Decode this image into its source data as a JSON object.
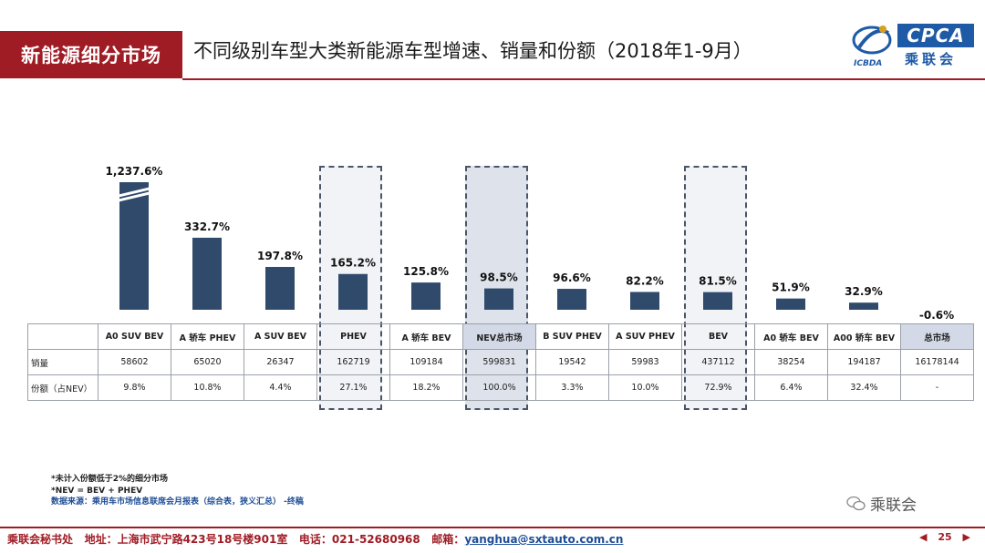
{
  "header": {
    "tag": "新能源细分市场",
    "title": "不同级别车型大类新能源车型增速、销量和份额（2018年1-9月）",
    "logo_text": "CPCA",
    "logo_cn": "乘联会",
    "logo_sub": "ICBDA"
  },
  "chart_data": {
    "type": "bar",
    "categories": [
      "A0 SUV BEV",
      "A 轿车 PHEV",
      "A SUV BEV",
      "PHEV",
      "A 轿车 BEV",
      "NEV总市场",
      "B SUV PHEV",
      "A SUV PHEV",
      "BEV",
      "A0 轿车 BEV",
      "A00 轿车 BEV",
      "总市场"
    ],
    "values": [
      1237.6,
      332.7,
      197.8,
      165.2,
      125.8,
      98.5,
      96.6,
      82.2,
      81.5,
      51.9,
      32.9,
      -0.6
    ],
    "value_labels": [
      "1,237.6%",
      "332.7%",
      "197.8%",
      "165.2%",
      "125.8%",
      "98.5%",
      "96.6%",
      "82.2%",
      "81.5%",
      "51.9%",
      "32.9%",
      "-0.6%"
    ],
    "axis_break_on": "A0 SUV BEV",
    "highlighted": [
      "PHEV",
      "NEV总市场",
      "BEV"
    ],
    "bar_color": "#2f4a6b"
  },
  "table": {
    "rows": [
      {
        "label": "销量",
        "cells": [
          "58602",
          "65020",
          "26347",
          "162719",
          "109184",
          "599831",
          "19542",
          "59983",
          "437112",
          "38254",
          "194187",
          "16178144"
        ]
      },
      {
        "label": "份额（占NEV）",
        "cells": [
          "9.8%",
          "10.8%",
          "4.4%",
          "27.1%",
          "18.2%",
          "100.0%",
          "3.3%",
          "10.0%",
          "72.9%",
          "6.4%",
          "32.4%",
          "-"
        ]
      }
    ]
  },
  "notes": {
    "line1": "*未计入份额低于2%的细分市场",
    "line2": "*NEV = BEV + PHEV",
    "line3": "数据来源：乘用车市场信息联席会月报表（综合表，狭义汇总） -终稿"
  },
  "watermark": "乘联会",
  "footer": {
    "org": "乘联会秘书处",
    "address": "地址：上海市武宁路423号18号楼901室",
    "phone": "电话：021-52680968",
    "email_label": "邮箱：",
    "email": "yanghua@sxtauto.com.cn",
    "page": "25",
    "prev": "◀",
    "next": "▶"
  },
  "colors": {
    "brand_red": "#a01c25",
    "brand_blue": "#1f5aa6",
    "bar": "#2f4a6b"
  }
}
